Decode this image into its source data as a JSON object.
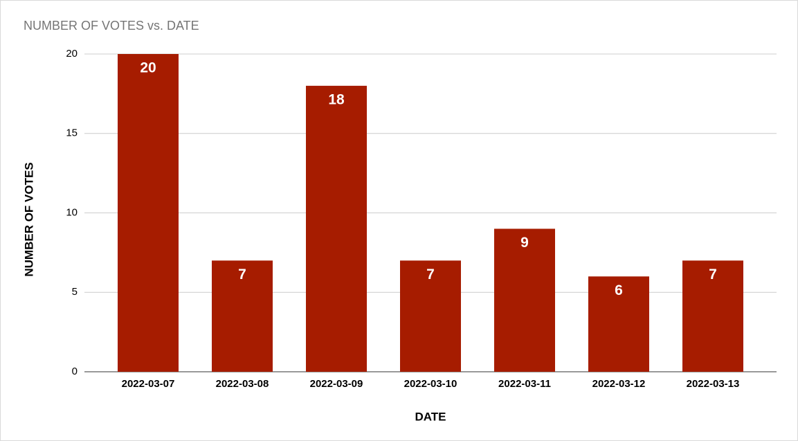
{
  "chart_data": {
    "type": "bar",
    "title": "NUMBER OF VOTES vs. DATE",
    "x_label": "DATE",
    "y_label": "NUMBER OF VOTES",
    "categories": [
      "2022-03-07",
      "2022-03-08",
      "2022-03-09",
      "2022-03-10",
      "2022-03-11",
      "2022-03-12",
      "2022-03-13"
    ],
    "values": [
      20,
      7,
      18,
      7,
      9,
      6,
      7
    ],
    "color": "#a61c00",
    "ylim": [
      0,
      20
    ],
    "yticks": [
      0,
      5,
      10,
      15,
      20
    ],
    "grid": true,
    "data_labels": true
  }
}
